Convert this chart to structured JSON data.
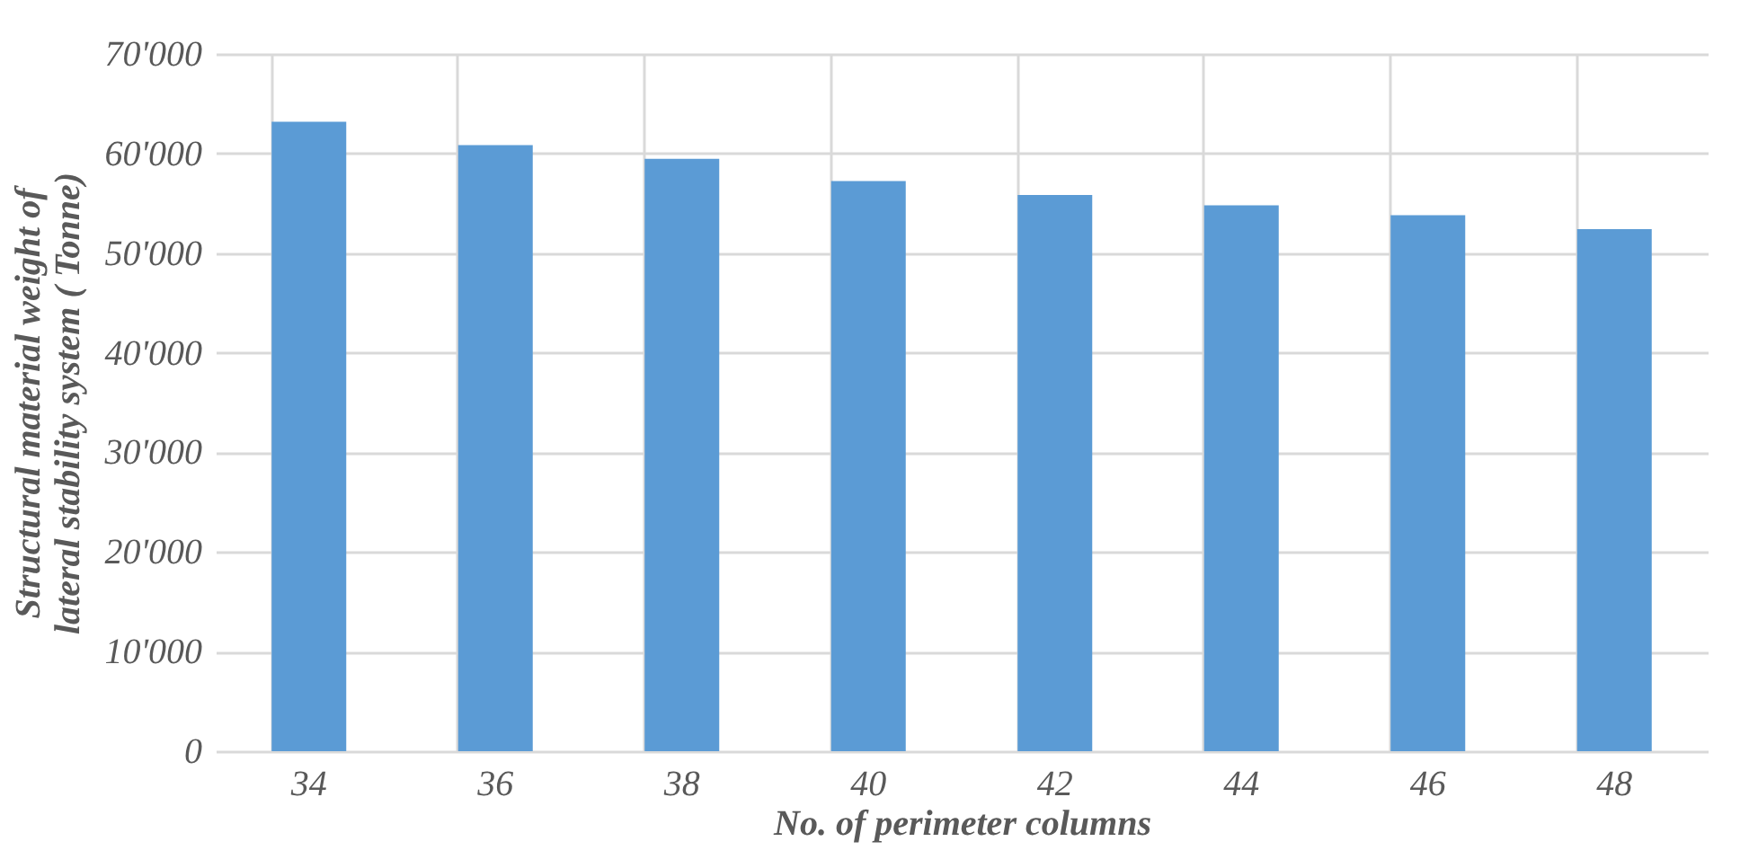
{
  "chart_data": {
    "type": "bar",
    "xlabel": "No. of perimeter columns",
    "ylabel": "Structural material weight of\nlateral stability system ( Tonne)",
    "categories": [
      "34",
      "36",
      "38",
      "40",
      "42",
      "44",
      "46",
      "48"
    ],
    "values": [
      63200,
      60850,
      59460,
      57230,
      55840,
      54810,
      53800,
      52400
    ],
    "color": "#5b9bd5",
    "ylim": [
      0,
      70000
    ],
    "yticks": [
      {
        "value": 0,
        "label": "0"
      },
      {
        "value": 10000,
        "label": "10'000"
      },
      {
        "value": 20000,
        "label": "20'000"
      },
      {
        "value": 30000,
        "label": "30'000"
      },
      {
        "value": 40000,
        "label": "40'000"
      },
      {
        "value": 50000,
        "label": "50'000"
      },
      {
        "value": 60000,
        "label": "60'000"
      },
      {
        "value": 70000,
        "label": "70'000"
      }
    ],
    "grid": true
  }
}
